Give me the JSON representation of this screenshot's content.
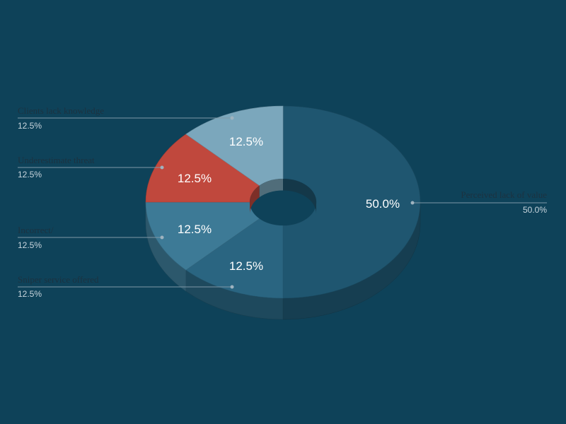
{
  "chart_data": {
    "type": "pie",
    "title": "",
    "categories": [
      "Perceived lack of value",
      "Sniper service offered",
      "Incorrect/",
      "Underestimate threat",
      "Clients lack knowledge"
    ],
    "values": [
      50.0,
      12.5,
      12.5,
      12.5,
      12.5
    ],
    "value_labels": [
      "50.0%",
      "12.5%",
      "12.5%",
      "12.5%",
      "12.5%"
    ],
    "colors": [
      "#1f5670",
      "#2a6581",
      "#3d7a96",
      "#c0483d",
      "#7ba7bc"
    ],
    "donut": true,
    "three_d": true,
    "legend": "labels with leader lines, left and right of pie"
  },
  "background_color": "#0e4259"
}
